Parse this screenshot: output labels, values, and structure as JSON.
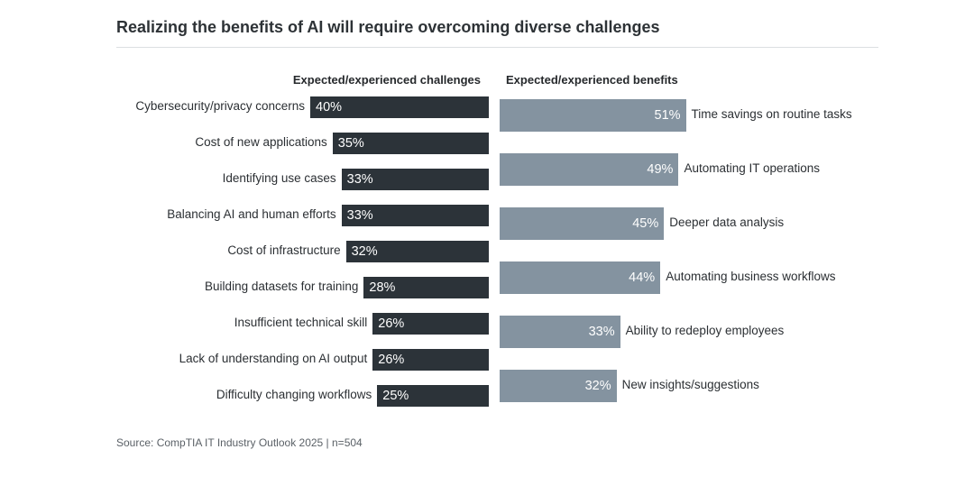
{
  "title": "Realizing the benefits of AI will require overcoming diverse challenges",
  "source": "Source: CompTIA IT Industry Outlook 2025 | n=504",
  "chart_data": [
    {
      "type": "bar",
      "orientation": "horizontal",
      "title": "Expected/experienced challenges",
      "categories": [
        "Cybersecurity/privacy concerns",
        "Cost of new applications",
        "Identifying use cases",
        "Balancing AI and human efforts",
        "Cost of infrastructure",
        "Building datasets for training",
        "Insufficient technical skill",
        "Lack of understanding on AI output",
        "Difficulty changing workflows"
      ],
      "values": [
        40,
        35,
        33,
        33,
        32,
        28,
        26,
        26,
        25
      ],
      "data_labels": [
        "40%",
        "35%",
        "33%",
        "33%",
        "32%",
        "28%",
        "26%",
        "26%",
        "25%"
      ],
      "bar_color": "#2c3339",
      "direction": "right-to-left"
    },
    {
      "type": "bar",
      "orientation": "horizontal",
      "title": "Expected/experienced benefits",
      "categories": [
        "Time savings on routine tasks",
        "Automating IT operations",
        "Deeper data analysis",
        "Automating business workflows",
        "Ability to redeploy employees",
        "New insights/suggestions"
      ],
      "values": [
        51,
        49,
        45,
        44,
        33,
        32
      ],
      "data_labels": [
        "51%",
        "49%",
        "45%",
        "44%",
        "33%",
        "32%"
      ],
      "bar_color": "#8493a0",
      "direction": "left-to-right"
    }
  ]
}
